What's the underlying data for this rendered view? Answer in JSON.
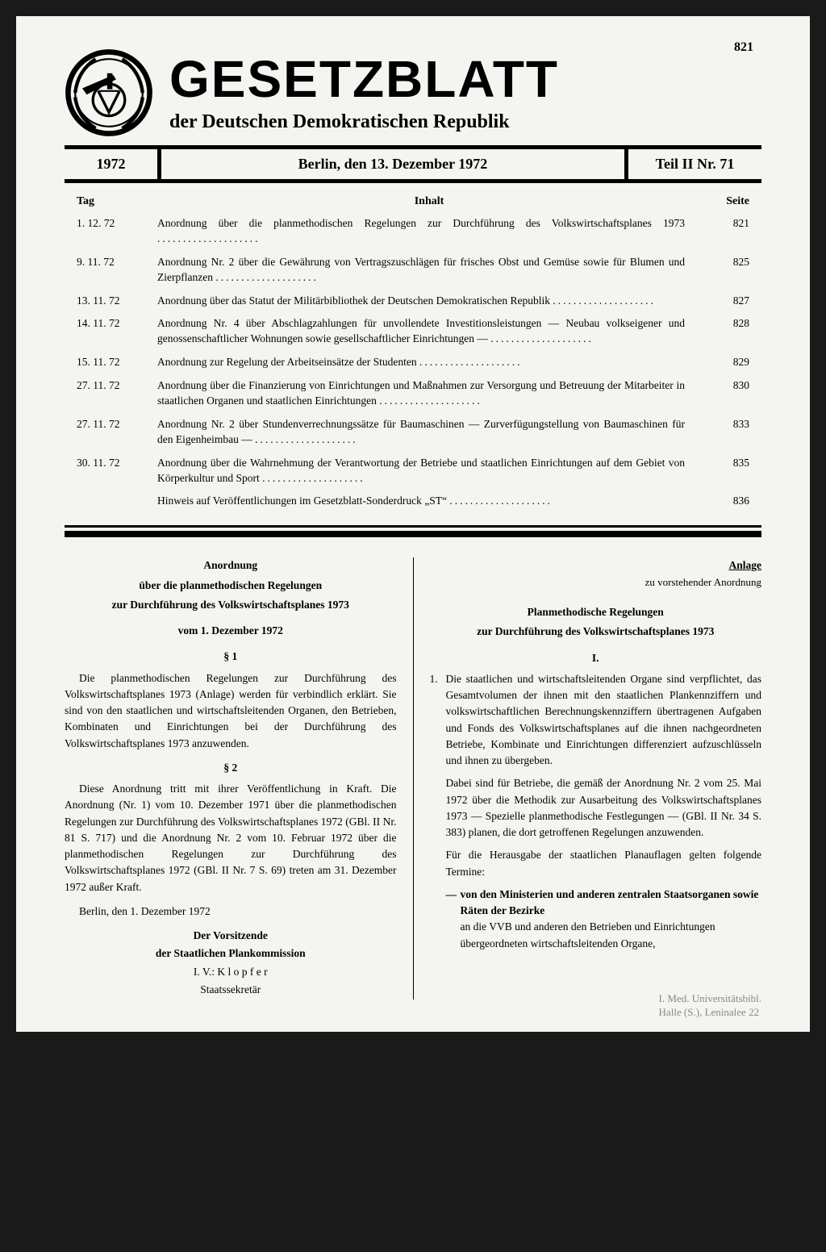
{
  "pageNumber": "821",
  "masthead": {
    "title": "GESETZBLATT",
    "subtitle": "der Deutschen Demokratischen Republik"
  },
  "issueBar": {
    "year": "1972",
    "date": "Berlin, den 13. Dezember 1972",
    "number": "Teil II Nr. 71"
  },
  "toc": {
    "headers": {
      "tag": "Tag",
      "title": "Inhalt",
      "page": "Seite"
    },
    "rows": [
      {
        "tag": "1. 12. 72",
        "title": "Anordnung über die planmethodischen Regelungen zur Durchführung des Volkswirtschaftsplanes 1973",
        "page": "821"
      },
      {
        "tag": "9. 11. 72",
        "title": "Anordnung Nr. 2 über die Gewährung von Vertragszuschlägen für frisches Obst und Gemüse sowie für Blumen und Zierpflanzen",
        "page": "825"
      },
      {
        "tag": "13. 11. 72",
        "title": "Anordnung über das Statut der Militärbibliothek der Deutschen Demokratischen Republik",
        "page": "827"
      },
      {
        "tag": "14. 11. 72",
        "title": "Anordnung Nr. 4 über Abschlagzahlungen für unvollendete Investitionsleistungen — Neubau volkseigener und genossenschaftlicher Wohnungen sowie gesellschaftlicher Einrichtungen —",
        "page": "828"
      },
      {
        "tag": "15. 11. 72",
        "title": "Anordnung zur Regelung der Arbeitseinsätze der Studenten",
        "page": "829"
      },
      {
        "tag": "27. 11. 72",
        "title": "Anordnung über die Finanzierung von Einrichtungen und Maßnahmen zur Versorgung und Betreuung der Mitarbeiter in staatlichen Organen und staatlichen Einrichtungen",
        "page": "830"
      },
      {
        "tag": "27. 11. 72",
        "title": "Anordnung Nr. 2 über Stundenverrechnungssätze für Baumaschinen — Zurverfügungstellung von Baumaschinen für den Eigenheimbau —",
        "page": "833"
      },
      {
        "tag": "30. 11. 72",
        "title": "Anordnung über die Wahrnehmung der Verantwortung der Betriebe und staatlichen Einrichtungen auf dem Gebiet von Körperkultur und Sport",
        "page": "835"
      },
      {
        "tag": "",
        "title": "Hinweis auf Veröffentlichungen im Gesetzblatt-Sonderdruck „ST“",
        "page": "836"
      }
    ]
  },
  "leftColumn": {
    "h1": "Anordnung",
    "h2": "über die planmethodischen Regelungen",
    "h3": "zur Durchführung des Volkswirtschaftsplanes 1973",
    "date": "vom 1. Dezember 1972",
    "s1": "§ 1",
    "p1": "Die planmethodischen Regelungen zur Durchführung des Volkswirtschaftsplanes 1973 (Anlage) werden für verbindlich erklärt. Sie sind von den staatlichen und wirtschaftsleitenden Organen, den Betrieben, Kombinaten und Einrichtungen bei der Durchführung des Volkswirtschaftsplanes 1973 anzuwenden.",
    "s2": "§ 2",
    "p2": "Diese Anordnung tritt mit ihrer Veröffentlichung in Kraft. Die Anordnung (Nr. 1) vom 10. Dezember 1971 über die planmethodischen Regelungen zur Durchführung des Volkswirtschaftsplanes 1972 (GBl. II Nr. 81 S. 717) und die Anordnung Nr. 2 vom 10. Februar 1972 über die planmethodischen Regelungen zur Durchführung des Volkswirtschaftsplanes 1972 (GBl. II Nr. 7 S. 69) treten am 31. Dezember 1972 außer Kraft.",
    "place": "Berlin, den 1. Dezember 1972",
    "sig1": "Der Vorsitzende",
    "sig2": "der Staatlichen Plankommission",
    "sig3": "I. V.: K l o p f e r",
    "sig4": "Staatssekretär"
  },
  "rightColumn": {
    "anlage": "Anlage",
    "anlageSub": "zu vorstehender Anordnung",
    "h1": "Planmethodische Regelungen",
    "h2": "zur Durchführung des Volkswirtschaftsplanes 1973",
    "roman": "I.",
    "item1": "Die staatlichen und wirtschaftsleitenden Organe sind verpflichtet, das Gesamtvolumen der ihnen mit den staatlichen Plankennziffern und volkswirtschaftlichen Berechnungskennziffern übertragenen Aufgaben und Fonds des Volkswirtschaftsplanes auf die ihnen nachgeordneten Betriebe, Kombinate und Einrichtungen differenziert aufzuschlüsseln und ihnen zu übergeben.",
    "item1b": "Dabei sind für Betriebe, die gemäß der Anordnung Nr. 2 vom 25. Mai 1972 über die Methodik zur Ausarbeitung des Volkswirtschaftsplanes 1973 — Spezielle planmethodische Festlegungen — (GBl. II Nr. 34 S. 383) planen, die dort getroffenen Regelungen anzuwenden.",
    "item1c": "Für die Herausgabe der staatlichen Planauflagen gelten folgende Termine:",
    "dash1a": "von den Ministerien und anderen zentralen Staatsorganen sowie Räten der Bezirke",
    "dash1b": "an die VVB und anderen den Betrieben und Einrichtungen übergeordneten wirtschaftsleitenden Organe,"
  },
  "stamp": {
    "l1": "I. Med. Universitätsbibl.",
    "l2": "Halle (S.), Leninalee 22"
  },
  "colors": {
    "pageBg": "#f4f4f0",
    "bodyBg": "#1a1a1a",
    "text": "#000000"
  }
}
